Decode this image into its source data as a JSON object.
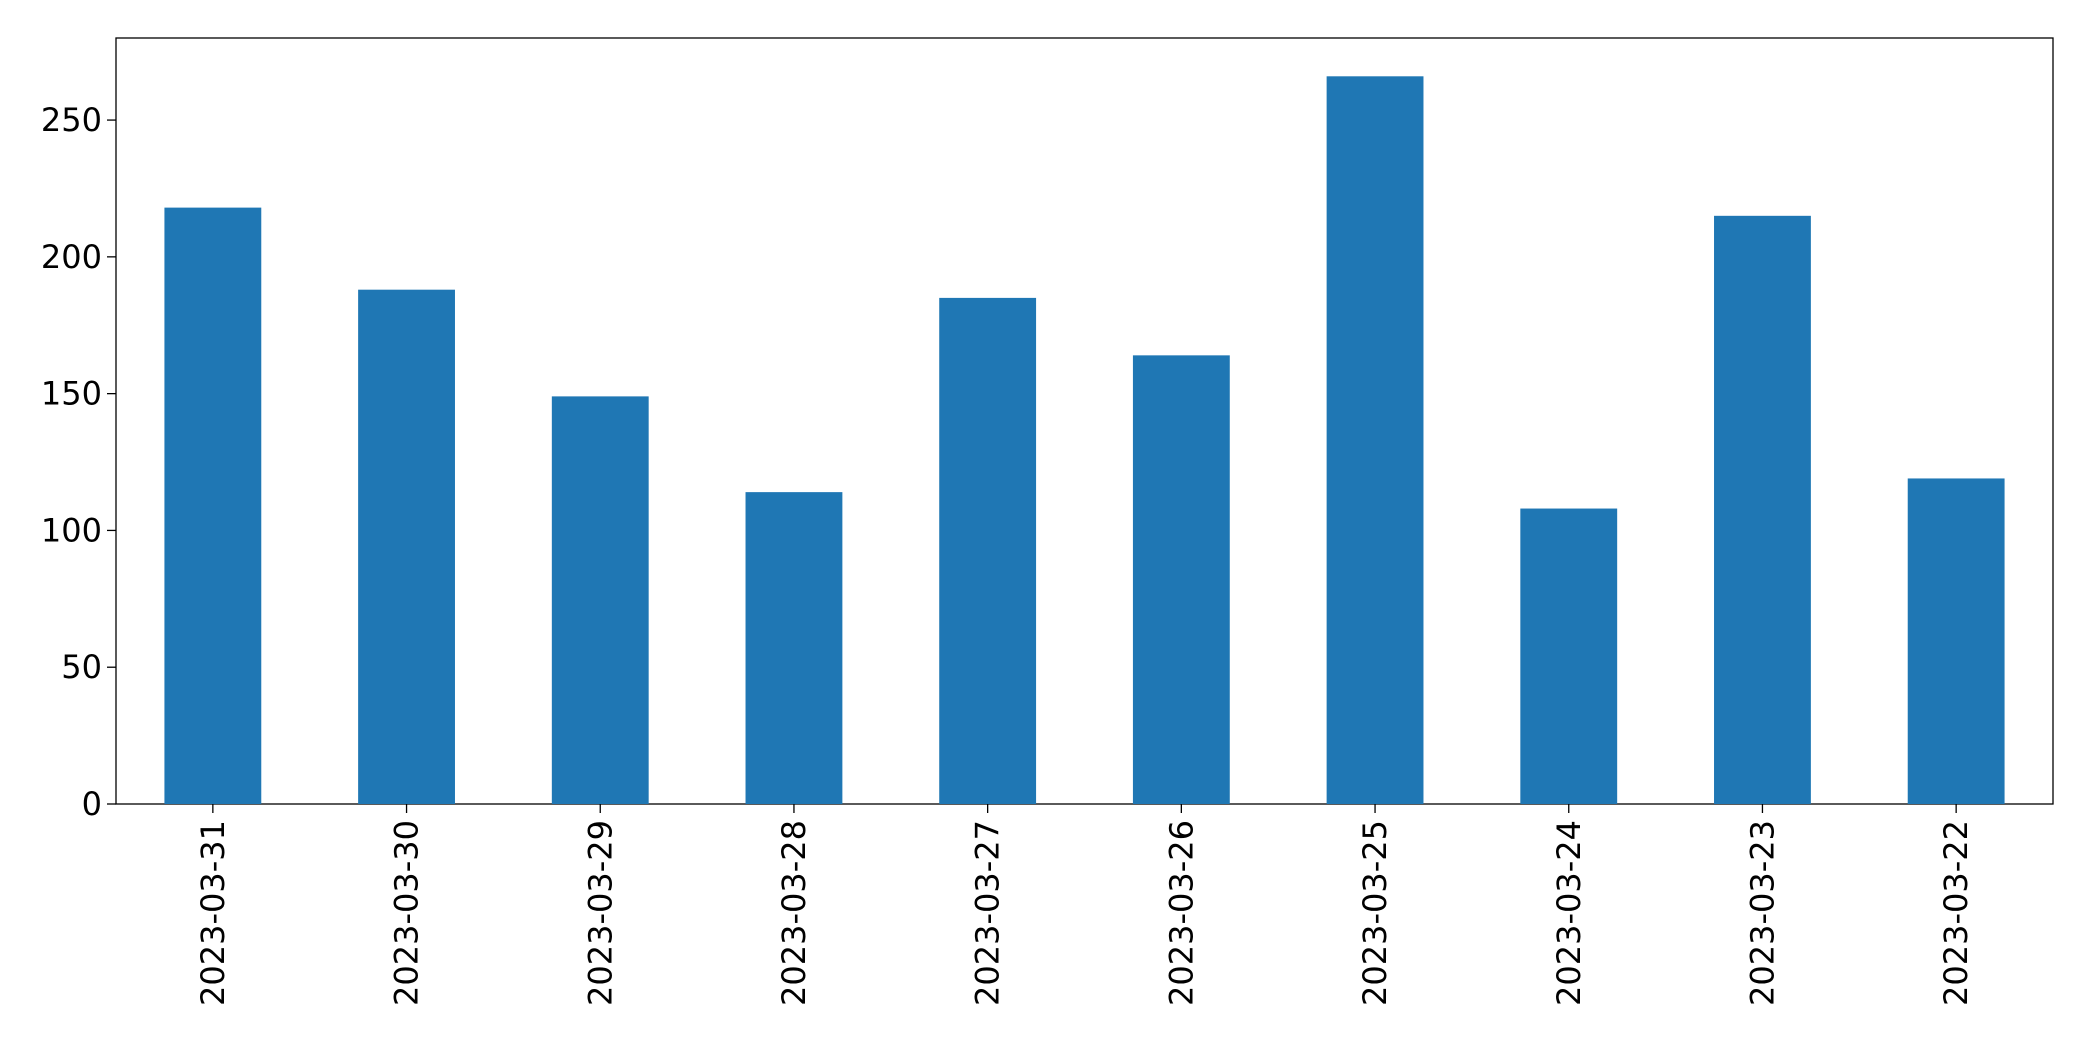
{
  "chart_data": {
    "type": "bar",
    "categories": [
      "2023-03-31",
      "2023-03-30",
      "2023-03-29",
      "2023-03-28",
      "2023-03-27",
      "2023-03-26",
      "2023-03-25",
      "2023-03-24",
      "2023-03-23",
      "2023-03-22"
    ],
    "values": [
      218,
      188,
      149,
      114,
      185,
      164,
      266,
      108,
      215,
      119
    ],
    "color": "#1f77b4",
    "ylim": [
      0,
      280
    ],
    "yticks": [
      0,
      50,
      100,
      150,
      200,
      250
    ],
    "grid": false
  }
}
